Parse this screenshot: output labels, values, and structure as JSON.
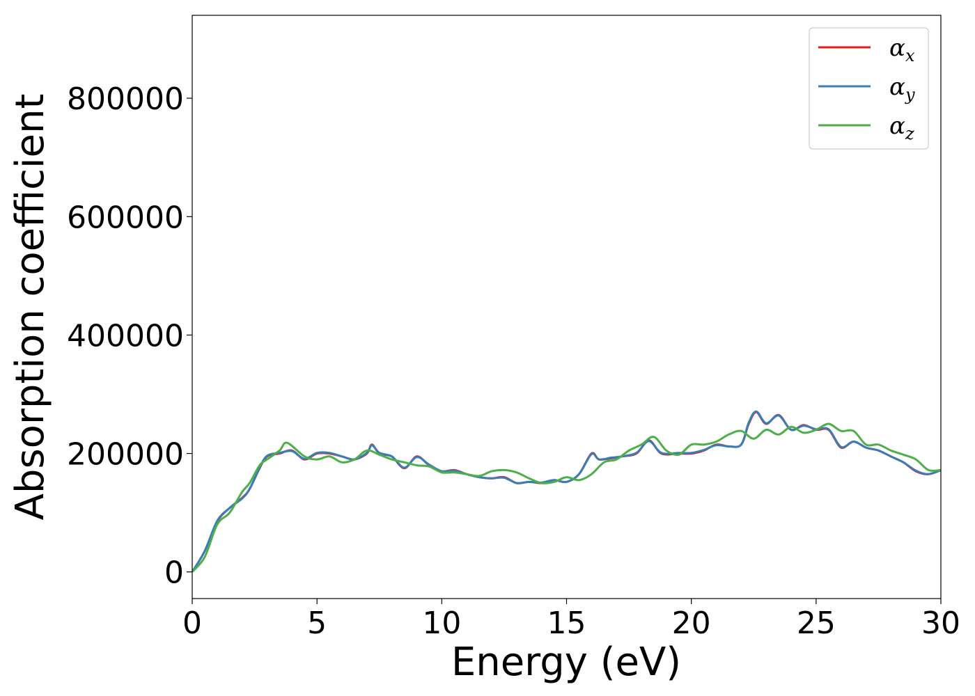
{
  "chart_data": {
    "type": "line",
    "xlabel": "Energy (eV)",
    "ylabel": "Absorption coefficient",
    "xlim": [
      0,
      30
    ],
    "ylim": [
      -45000,
      940000
    ],
    "xticks": [
      0,
      5,
      10,
      15,
      20,
      25,
      30
    ],
    "yticks": [
      0,
      200000,
      400000,
      600000,
      800000
    ],
    "grid": false,
    "legend_position": "top-right",
    "series": [
      {
        "name": "α_x",
        "label_main": "α",
        "label_sub": "x",
        "color": "#e41a1c",
        "x": [
          0,
          0.5,
          1,
          1.5,
          2,
          2.3,
          2.7,
          3,
          3.5,
          4,
          4.5,
          5,
          5.5,
          6,
          6.5,
          7,
          7.2,
          7.5,
          8,
          8.5,
          9,
          9.5,
          10,
          10.5,
          11,
          11.5,
          12,
          12.5,
          13,
          13.5,
          14,
          14.5,
          15,
          15.5,
          16,
          16.3,
          16.8,
          17.2,
          17.8,
          18.3,
          18.8,
          19.5,
          20,
          20.5,
          21,
          21.5,
          22,
          22.3,
          22.6,
          23,
          23.5,
          24,
          24.5,
          25,
          25.5,
          26,
          26.5,
          27,
          27.5,
          28,
          28.5,
          29,
          29.5,
          30
        ],
        "values": [
          0,
          35000,
          85000,
          108000,
          125000,
          140000,
          175000,
          195000,
          200000,
          205000,
          190000,
          200000,
          200000,
          195000,
          190000,
          200000,
          215000,
          200000,
          195000,
          175000,
          195000,
          180000,
          170000,
          172000,
          165000,
          160000,
          158000,
          160000,
          150000,
          152000,
          150000,
          155000,
          152000,
          165000,
          200000,
          190000,
          192000,
          195000,
          200000,
          222000,
          200000,
          200000,
          200000,
          205000,
          215000,
          212000,
          215000,
          250000,
          270000,
          250000,
          265000,
          240000,
          248000,
          240000,
          240000,
          210000,
          220000,
          210000,
          205000,
          195000,
          185000,
          170000,
          165000,
          172000
        ]
      },
      {
        "name": "α_y",
        "label_main": "α",
        "label_sub": "y",
        "color": "#377eb8",
        "x": [
          0,
          0.5,
          1,
          1.5,
          2,
          2.3,
          2.7,
          3,
          3.5,
          4,
          4.5,
          5,
          5.5,
          6,
          6.5,
          7,
          7.2,
          7.5,
          8,
          8.5,
          9,
          9.5,
          10,
          10.5,
          11,
          11.5,
          12,
          12.5,
          13,
          13.5,
          14,
          14.5,
          15,
          15.5,
          16,
          16.3,
          16.8,
          17.2,
          17.8,
          18.3,
          18.8,
          19.5,
          20,
          20.5,
          21,
          21.5,
          22,
          22.3,
          22.6,
          23,
          23.5,
          24,
          24.5,
          25,
          25.5,
          26,
          26.5,
          27,
          27.5,
          28,
          28.5,
          29,
          29.5,
          30
        ],
        "values": [
          0,
          35000,
          86000,
          108000,
          124000,
          140000,
          176000,
          196000,
          201000,
          204000,
          191000,
          201000,
          201000,
          195000,
          190000,
          201000,
          214000,
          201000,
          195000,
          176000,
          194000,
          181000,
          170000,
          171000,
          165000,
          160000,
          158000,
          159000,
          150000,
          152000,
          151000,
          155000,
          152000,
          165000,
          199000,
          190000,
          193000,
          195000,
          201000,
          221000,
          201000,
          201000,
          201000,
          206000,
          214000,
          212000,
          215000,
          252000,
          271000,
          251000,
          264000,
          240000,
          247000,
          241000,
          241000,
          211000,
          220000,
          210000,
          205000,
          195000,
          185000,
          171000,
          165000,
          172000
        ]
      },
      {
        "name": "α_z",
        "label_main": "α",
        "label_sub": "z",
        "color": "#4daf4a",
        "x": [
          0,
          0.5,
          1,
          1.5,
          2,
          2.3,
          2.7,
          3,
          3.5,
          3.8,
          4.5,
          5,
          5.5,
          6,
          6.5,
          7,
          7.5,
          8,
          8.5,
          9,
          9.5,
          10,
          10.5,
          11,
          11.5,
          12,
          12.5,
          13,
          13.5,
          14,
          14.5,
          15,
          15.5,
          16,
          16.5,
          17,
          17.5,
          18,
          18.5,
          19,
          19.5,
          20,
          20.5,
          21,
          21.5,
          22,
          22.5,
          23,
          23.5,
          24,
          24.5,
          25,
          25.5,
          26,
          26.5,
          27,
          27.5,
          28,
          28.5,
          29,
          29.5,
          30
        ],
        "values": [
          0,
          25000,
          80000,
          100000,
          135000,
          150000,
          180000,
          190000,
          205000,
          218000,
          195000,
          190000,
          195000,
          185000,
          190000,
          205000,
          198000,
          190000,
          185000,
          180000,
          178000,
          168000,
          168000,
          165000,
          162000,
          170000,
          172000,
          168000,
          158000,
          150000,
          152000,
          160000,
          155000,
          165000,
          185000,
          190000,
          205000,
          215000,
          228000,
          205000,
          198000,
          215000,
          215000,
          220000,
          232000,
          238000,
          225000,
          240000,
          232000,
          245000,
          235000,
          240000,
          250000,
          238000,
          238000,
          215000,
          215000,
          205000,
          198000,
          190000,
          172000,
          172000
        ]
      }
    ]
  }
}
